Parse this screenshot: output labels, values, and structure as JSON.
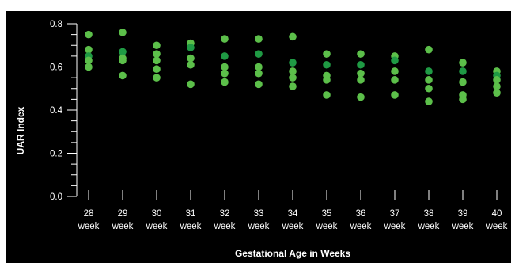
{
  "chart_data": {
    "type": "scatter",
    "title": "",
    "xlabel": "Gestational Age in Weeks",
    "ylabel": "UAR Index",
    "ylim": [
      0,
      0.8
    ],
    "y_ticks": [
      "0.0",
      "0.2",
      "0.4",
      "0.6",
      "0.8"
    ],
    "categories": [
      {
        "num": "28",
        "unit": "week"
      },
      {
        "num": "29",
        "unit": "week"
      },
      {
        "num": "30",
        "unit": "week"
      },
      {
        "num": "31",
        "unit": "week"
      },
      {
        "num": "32",
        "unit": "week"
      },
      {
        "num": "33",
        "unit": "week"
      },
      {
        "num": "34",
        "unit": "week"
      },
      {
        "num": "35",
        "unit": "week"
      },
      {
        "num": "36",
        "unit": "week"
      },
      {
        "num": "37",
        "unit": "week"
      },
      {
        "num": "38",
        "unit": "week"
      },
      {
        "num": "39",
        "unit": "week"
      },
      {
        "num": "40",
        "unit": "week"
      }
    ],
    "points": [
      {
        "x": "28",
        "values": [
          0.75,
          0.68,
          0.65,
          0.63,
          0.6
        ],
        "highlight": 0.65
      },
      {
        "x": "29",
        "values": [
          0.76,
          0.67,
          0.64,
          0.63,
          0.56
        ],
        "highlight": 0.67
      },
      {
        "x": "30",
        "values": [
          0.7,
          0.66,
          0.63,
          0.59,
          0.55
        ],
        "highlight": null
      },
      {
        "x": "31",
        "values": [
          0.71,
          0.69,
          0.64,
          0.61,
          0.52
        ],
        "highlight": 0.69
      },
      {
        "x": "32",
        "values": [
          0.73,
          0.65,
          0.6,
          0.57,
          0.53
        ],
        "highlight": 0.65
      },
      {
        "x": "33",
        "values": [
          0.73,
          0.66,
          0.6,
          0.57,
          0.52
        ],
        "highlight": 0.66
      },
      {
        "x": "34",
        "values": [
          0.74,
          0.62,
          0.58,
          0.55,
          0.51
        ],
        "highlight": 0.62
      },
      {
        "x": "35",
        "values": [
          0.66,
          0.61,
          0.56,
          0.54,
          0.47
        ],
        "highlight": 0.61
      },
      {
        "x": "36",
        "values": [
          0.66,
          0.61,
          0.57,
          0.54,
          0.46
        ],
        "highlight": 0.61
      },
      {
        "x": "37",
        "values": [
          0.65,
          0.63,
          0.58,
          0.54,
          0.47
        ],
        "highlight": 0.63
      },
      {
        "x": "38",
        "values": [
          0.68,
          0.58,
          0.54,
          0.5,
          0.44
        ],
        "highlight": 0.58
      },
      {
        "x": "39",
        "values": [
          0.62,
          0.58,
          0.53,
          0.47,
          0.45
        ],
        "highlight": 0.58
      },
      {
        "x": "40",
        "values": [
          0.58,
          0.56,
          0.54,
          0.51,
          0.48
        ],
        "highlight": 0.56
      }
    ],
    "colors": {
      "background": "#000000",
      "point": "#5cbf4a",
      "point_highlight": "#1f9a44",
      "axis": "#ffffff",
      "text": "#ffffff"
    },
    "grid": false,
    "legend": "none"
  }
}
